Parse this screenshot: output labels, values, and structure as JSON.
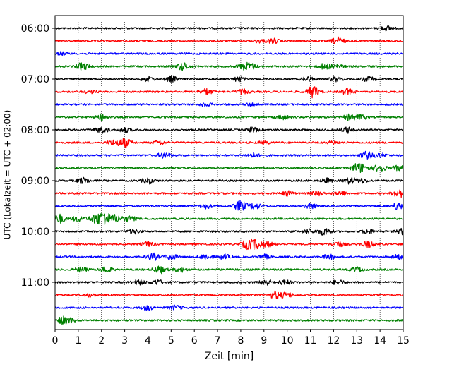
{
  "chart_data": {
    "type": "line",
    "title": "",
    "xlabel": "Zeit  [min]",
    "ylabel": "UTC (Lokalzeit = UTC + 02:00)",
    "xlim": [
      0,
      15
    ],
    "x_ticks": [
      "0",
      "1",
      "2",
      "3",
      "4",
      "5",
      "6",
      "7",
      "8",
      "9",
      "10",
      "11",
      "12",
      "13",
      "14",
      "15"
    ],
    "y_ticks": [
      {
        "label": "06:00",
        "row": 0
      },
      {
        "label": "07:00",
        "row": 4
      },
      {
        "label": "08:00",
        "row": 8
      },
      {
        "label": "09:00",
        "row": 12
      },
      {
        "label": "10:00",
        "row": 16
      },
      {
        "label": "11:00",
        "row": 20
      }
    ],
    "grid": "vertical-dotted",
    "colors": [
      "#000000",
      "#ff0000",
      "#0000ff",
      "#008000"
    ],
    "series": [
      {
        "start": "06:00",
        "color": "#000000",
        "events": [
          [
            14.3,
            3
          ]
        ]
      },
      {
        "start": "06:15",
        "color": "#ff0000",
        "events": [
          [
            8.8,
            2
          ],
          [
            9.4,
            3
          ],
          [
            12.2,
            5
          ]
        ]
      },
      {
        "start": "06:30",
        "color": "#0000ff",
        "events": [
          [
            0.3,
            2
          ]
        ]
      },
      {
        "start": "06:45",
        "color": "#008000",
        "events": [
          [
            1.2,
            5
          ],
          [
            5.5,
            5
          ],
          [
            8.1,
            3
          ],
          [
            8.4,
            4
          ],
          [
            11.6,
            4
          ],
          [
            12.2,
            3
          ]
        ]
      },
      {
        "start": "07:00",
        "color": "#000000",
        "events": [
          [
            4.0,
            3
          ],
          [
            5.0,
            4
          ],
          [
            7.9,
            3
          ],
          [
            10.9,
            3
          ],
          [
            12.1,
            3
          ],
          [
            13.5,
            3
          ]
        ]
      },
      {
        "start": "07:15",
        "color": "#ff0000",
        "events": [
          [
            1.5,
            2
          ],
          [
            6.5,
            4
          ],
          [
            8.1,
            3
          ],
          [
            11.1,
            8
          ],
          [
            12.6,
            4
          ]
        ]
      },
      {
        "start": "07:30",
        "color": "#0000ff",
        "events": [
          [
            6.5,
            2
          ],
          [
            8.5,
            2
          ]
        ]
      },
      {
        "start": "07:45",
        "color": "#008000",
        "events": [
          [
            2.0,
            4
          ],
          [
            9.8,
            3
          ],
          [
            12.7,
            4
          ],
          [
            13.2,
            3
          ]
        ]
      },
      {
        "start": "08:00",
        "color": "#000000",
        "events": [
          [
            2.0,
            5
          ],
          [
            3.0,
            3
          ],
          [
            8.5,
            3
          ],
          [
            12.6,
            4
          ]
        ]
      },
      {
        "start": "08:15",
        "color": "#ff0000",
        "events": [
          [
            2.5,
            3
          ],
          [
            3.0,
            6
          ],
          [
            4.5,
            3
          ],
          [
            9.0,
            2
          ],
          [
            12.0,
            2
          ]
        ]
      },
      {
        "start": "08:30",
        "color": "#0000ff",
        "events": [
          [
            4.7,
            4
          ],
          [
            8.5,
            3
          ],
          [
            13.4,
            5
          ],
          [
            14.0,
            3
          ]
        ]
      },
      {
        "start": "08:45",
        "color": "#008000",
        "events": [
          [
            13.0,
            5
          ],
          [
            13.3,
            4
          ],
          [
            14.0,
            5
          ],
          [
            14.8,
            3
          ]
        ]
      },
      {
        "start": "09:00",
        "color": "#000000",
        "events": [
          [
            1.2,
            4
          ],
          [
            4.0,
            4
          ],
          [
            11.7,
            3
          ],
          [
            12.7,
            4
          ],
          [
            13.2,
            3
          ]
        ]
      },
      {
        "start": "09:15",
        "color": "#ff0000",
        "events": [
          [
            10.0,
            3
          ],
          [
            11.3,
            3
          ],
          [
            12.3,
            3
          ],
          [
            14.8,
            6
          ]
        ]
      },
      {
        "start": "09:30",
        "color": "#0000ff",
        "events": [
          [
            6.5,
            3
          ],
          [
            8.0,
            7
          ],
          [
            8.6,
            4
          ],
          [
            11.0,
            3
          ],
          [
            14.8,
            5
          ]
        ]
      },
      {
        "start": "09:45",
        "color": "#008000",
        "events": [
          [
            0.2,
            6
          ],
          [
            1.0,
            4
          ],
          [
            1.7,
            5
          ],
          [
            2.1,
            10
          ],
          [
            2.6,
            5
          ],
          [
            3.2,
            4
          ]
        ]
      },
      {
        "start": "10:00",
        "color": "#000000",
        "events": [
          [
            3.4,
            3
          ],
          [
            10.9,
            3
          ],
          [
            11.6,
            5
          ],
          [
            13.5,
            3
          ],
          [
            15.0,
            4
          ]
        ]
      },
      {
        "start": "10:15",
        "color": "#ff0000",
        "events": [
          [
            4.0,
            3
          ],
          [
            8.3,
            6
          ],
          [
            8.7,
            6
          ],
          [
            9.2,
            3
          ],
          [
            12.2,
            4
          ],
          [
            13.5,
            4
          ]
        ]
      },
      {
        "start": "10:30",
        "color": "#0000ff",
        "events": [
          [
            4.2,
            5
          ],
          [
            5.0,
            4
          ],
          [
            6.5,
            4
          ],
          [
            7.3,
            3
          ],
          [
            9.0,
            3
          ],
          [
            11.8,
            3
          ],
          [
            14.8,
            3
          ]
        ]
      },
      {
        "start": "10:45",
        "color": "#008000",
        "events": [
          [
            1.1,
            3
          ],
          [
            2.2,
            4
          ],
          [
            4.5,
            5
          ],
          [
            5.4,
            3
          ],
          [
            13.0,
            3
          ]
        ]
      },
      {
        "start": "11:00",
        "color": "#000000",
        "events": [
          [
            3.6,
            3
          ],
          [
            4.4,
            3
          ],
          [
            9.1,
            4
          ],
          [
            9.9,
            3
          ],
          [
            12.2,
            3
          ]
        ]
      },
      {
        "start": "11:15",
        "color": "#ff0000",
        "events": [
          [
            1.5,
            2
          ],
          [
            9.5,
            5
          ],
          [
            10.0,
            3
          ]
        ]
      },
      {
        "start": "11:30",
        "color": "#0000ff",
        "events": [
          [
            4.0,
            3
          ],
          [
            5.2,
            3
          ]
        ]
      },
      {
        "start": "11:45",
        "color": "#008000",
        "events": [
          [
            0.3,
            4
          ],
          [
            0.6,
            3
          ]
        ]
      }
    ]
  }
}
